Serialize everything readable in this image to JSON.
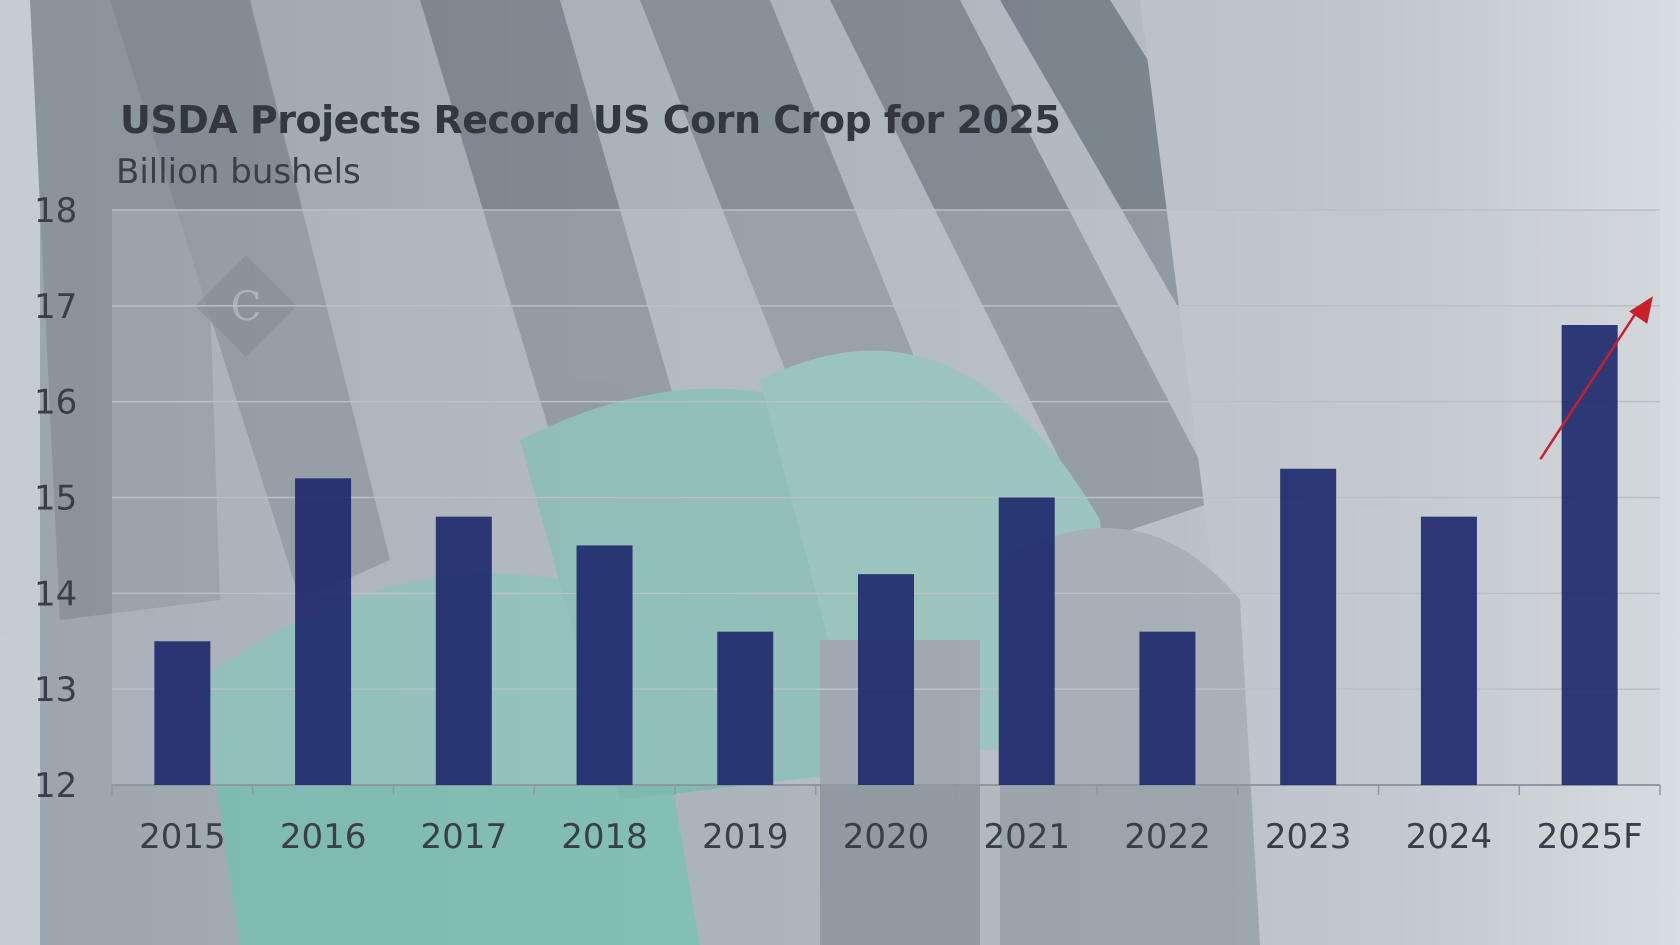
{
  "chart_data": {
    "type": "bar",
    "title": "USDA Projects Record US Corn Crop for 2025",
    "subtitle": "Billion bushels",
    "categories": [
      "2015",
      "2016",
      "2017",
      "2018",
      "2019",
      "2020",
      "2021",
      "2022",
      "2023",
      "2024",
      "2025F"
    ],
    "values": [
      13.5,
      15.2,
      14.8,
      14.5,
      13.6,
      14.2,
      15.0,
      13.6,
      15.3,
      14.8,
      16.8
    ],
    "yticks": [
      "12",
      "13",
      "14",
      "15",
      "16",
      "17",
      "18"
    ],
    "ylim": [
      12,
      18
    ],
    "grid": true,
    "bar_color": "#1f2a6e",
    "annotation": "arrow-up-trend",
    "annotation_color": "#c8202a"
  }
}
